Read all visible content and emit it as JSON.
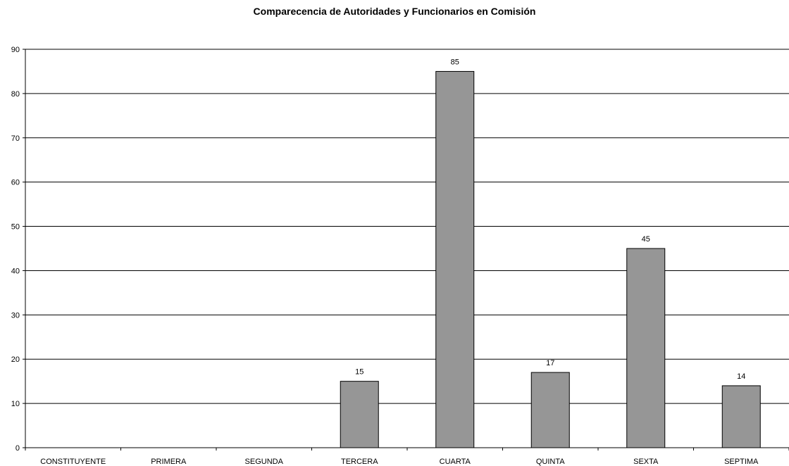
{
  "chart_data": {
    "type": "bar",
    "title": "Comparecencia de Autoridades y Funcionarios en Comisión",
    "xlabel": "",
    "ylabel": "",
    "categories": [
      "CONSTITUYENTE",
      "PRIMERA",
      "SEGUNDA",
      "TERCERA",
      "CUARTA",
      "QUINTA",
      "SEXTA",
      "SEPTIMA"
    ],
    "values": [
      0,
      0,
      0,
      15,
      85,
      17,
      45,
      14
    ],
    "data_labels": [
      "",
      "",
      "",
      "15",
      "85",
      "17",
      "45",
      "14"
    ],
    "ylim": [
      0,
      90
    ],
    "yticks": [
      0,
      10,
      20,
      30,
      40,
      50,
      60,
      70,
      80,
      90
    ],
    "grid": true,
    "legend": "none",
    "colors": {
      "bar_fill": "#969696",
      "bar_stroke": "#000000",
      "grid": "#000000"
    }
  }
}
